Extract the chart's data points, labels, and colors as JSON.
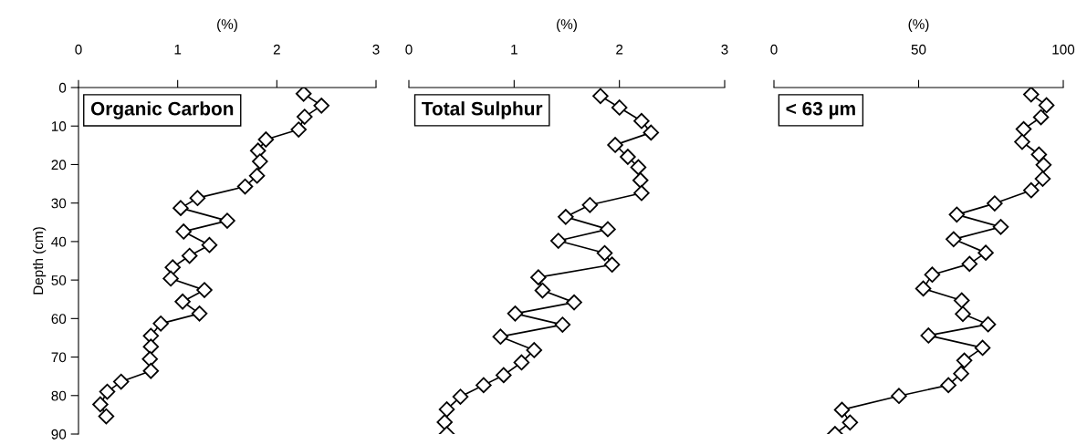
{
  "chart_data": [
    {
      "type": "line",
      "title": "Organic Carbon",
      "xlabel": "(%)",
      "ylabel": "Depth (cm)",
      "xlim": [
        0,
        3
      ],
      "xticks": [
        0,
        1,
        2,
        3
      ],
      "ylim": [
        90,
        0
      ],
      "yticks": [
        0,
        10,
        20,
        30,
        40,
        50,
        60,
        70,
        80,
        90
      ],
      "marker": "diamond",
      "line_style": "solid",
      "series": [
        {
          "color": "#000000",
          "x": [
            2.27,
            2.45,
            2.28,
            2.22,
            1.89,
            1.81,
            1.83,
            1.8,
            1.68,
            1.2,
            1.03,
            1.5,
            1.06,
            1.32,
            1.12,
            0.95,
            0.93,
            1.27,
            1.05,
            1.22,
            0.83,
            0.73,
            0.73,
            0.72,
            0.73,
            0.43,
            0.29,
            0.22,
            0.28
          ],
          "values": [
            1.6,
            4.7,
            7.6,
            10.9,
            13.5,
            16.4,
            19.2,
            22.9,
            25.7,
            28.7,
            31.3,
            34.6,
            37.4,
            40.9,
            43.7,
            46.7,
            49.6,
            52.6,
            55.6,
            58.7,
            61.3,
            64.5,
            67.3,
            70.5,
            73.6,
            76.4,
            79.0,
            82.3,
            85.4
          ]
        }
      ]
    },
    {
      "type": "line",
      "title": "Total Sulphur",
      "xlabel": "(%)",
      "xlim": [
        0,
        3
      ],
      "xticks": [
        0,
        1,
        2,
        3
      ],
      "ylim": [
        90,
        0
      ],
      "yticks": [
        0,
        10,
        20,
        30,
        40,
        50,
        60,
        70,
        80,
        90
      ],
      "tick_labels": "x",
      "marker": "diamond",
      "line_style": "solid",
      "series": [
        {
          "color": "#000000",
          "x": [
            1.82,
            2.0,
            2.21,
            2.3,
            1.96,
            2.08,
            2.18,
            2.2,
            2.21,
            1.72,
            1.49,
            1.89,
            1.42,
            1.86,
            1.93,
            1.23,
            1.27,
            1.57,
            1.01,
            1.46,
            0.87,
            1.19,
            1.07,
            0.9,
            0.71,
            0.49,
            0.36,
            0.34,
            0.36
          ],
          "values": [
            2.2,
            5.2,
            8.7,
            11.7,
            14.9,
            18.0,
            20.7,
            24.1,
            27.4,
            30.5,
            33.6,
            36.8,
            39.8,
            43.0,
            46.0,
            49.3,
            52.7,
            55.8,
            58.7,
            61.6,
            64.7,
            68.2,
            71.4,
            74.7,
            77.3,
            80.3,
            83.6,
            86.9,
            90.0
          ]
        }
      ]
    },
    {
      "type": "line",
      "title": "< 63 µm",
      "xlabel": "(%)",
      "xlim": [
        0,
        100
      ],
      "xticks": [
        0,
        50,
        100
      ],
      "ylim": [
        90,
        0
      ],
      "yticks": [
        0,
        10,
        20,
        30,
        40,
        50,
        60,
        70,
        80,
        90
      ],
      "tick_labels": "x",
      "marker": "diamond",
      "line_style": "solid",
      "series": [
        {
          "color": "#000000",
          "x": [
            88.9,
            94.2,
            92.3,
            86.3,
            85.8,
            91.6,
            93.2,
            92.9,
            88.9,
            76.3,
            63.2,
            78.4,
            62.1,
            73.2,
            67.6,
            54.7,
            51.6,
            64.9,
            65.3,
            74.0,
            53.4,
            72.1,
            65.8,
            64.7,
            60.3,
            43.2,
            23.5,
            26.3,
            21.1
          ],
          "values": [
            1.8,
            4.6,
            7.7,
            10.8,
            14.1,
            17.4,
            20.1,
            23.7,
            26.7,
            30.1,
            33.0,
            36.2,
            39.4,
            42.9,
            45.8,
            48.6,
            52.2,
            55.3,
            58.8,
            61.5,
            64.4,
            67.6,
            70.9,
            74.3,
            77.3,
            80.1,
            83.7,
            87.0,
            90.0
          ]
        }
      ]
    }
  ]
}
